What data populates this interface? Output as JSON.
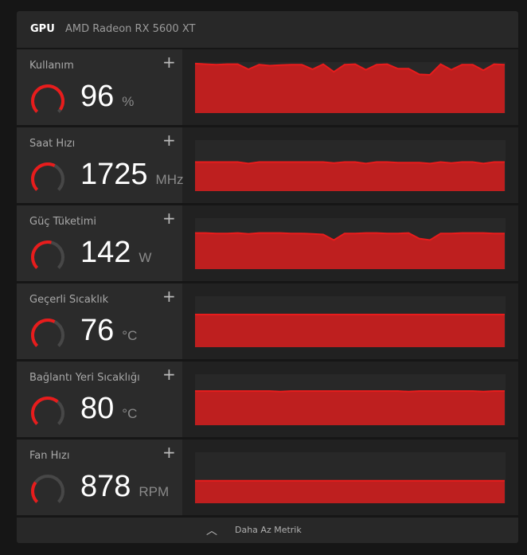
{
  "header": {
    "tab": "GPU",
    "device": "AMD Radeon RX 5600 XT"
  },
  "colors": {
    "accent": "#e81c1c",
    "fill": "#be1f1f",
    "gauge_track": "#474747"
  },
  "metrics": [
    {
      "label": "Kullanım",
      "value": "96",
      "unit": "%",
      "gauge": 0.96,
      "history": [
        97,
        96,
        95,
        96,
        96,
        86,
        95,
        93,
        94,
        95,
        95,
        86,
        96,
        81,
        95,
        96,
        85,
        95,
        96,
        87,
        87,
        76,
        75,
        96,
        85,
        95,
        95,
        84,
        96,
        95
      ]
    },
    {
      "label": "Saat Hızı",
      "value": "1725",
      "unit": "MHz",
      "gauge": 0.6,
      "history": [
        57,
        57,
        57,
        57,
        57,
        54,
        57,
        57,
        57,
        57,
        57,
        57,
        57,
        55,
        57,
        57,
        54,
        57,
        57,
        56,
        56,
        56,
        54,
        57,
        55,
        57,
        57,
        54,
        57,
        57
      ]
    },
    {
      "label": "Güç Tüketimi",
      "value": "142",
      "unit": "W",
      "gauge": 0.55,
      "history": [
        71,
        71,
        70,
        70,
        71,
        69,
        71,
        71,
        71,
        70,
        70,
        69,
        68,
        57,
        70,
        70,
        71,
        71,
        70,
        70,
        71,
        60,
        57,
        70,
        70,
        71,
        71,
        71,
        70,
        70
      ]
    },
    {
      "label": "Geçerli Sıcaklık",
      "value": "76",
      "unit": "°C",
      "gauge": 0.6,
      "history": [
        64,
        64,
        64,
        64,
        64,
        64,
        64,
        64,
        64,
        64,
        64,
        64,
        64,
        64,
        64,
        64,
        64,
        64,
        64,
        64,
        64,
        64,
        64,
        64,
        64,
        64,
        64,
        64,
        64,
        64
      ]
    },
    {
      "label": "Bağlantı Yeri Sıcaklığı",
      "value": "80",
      "unit": "°C",
      "gauge": 0.65,
      "history": [
        67,
        67,
        67,
        67,
        67,
        67,
        67,
        67,
        66,
        67,
        67,
        67,
        67,
        67,
        67,
        67,
        67,
        67,
        67,
        67,
        66,
        67,
        67,
        67,
        67,
        67,
        67,
        66,
        67,
        67
      ]
    },
    {
      "label": "Fan Hızı",
      "value": "878",
      "unit": "RPM",
      "gauge": 0.3,
      "history": [
        44,
        44,
        44,
        44,
        44,
        44,
        44,
        44,
        44,
        44,
        44,
        44,
        44,
        44,
        44,
        44,
        44,
        44,
        44,
        44,
        44,
        44,
        44,
        44,
        44,
        44,
        44,
        44,
        44,
        44
      ]
    }
  ],
  "footer": {
    "label": "Daha Az Metrik"
  }
}
